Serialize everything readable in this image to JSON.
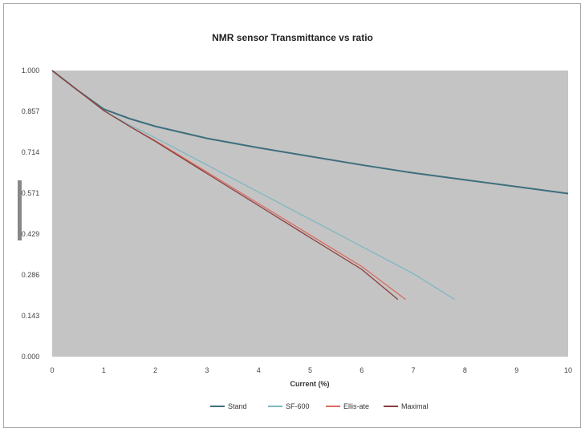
{
  "chart_data": {
    "type": "line",
    "title": "NMR sensor Transmittance vs ratio",
    "xlabel": "Current (%)",
    "ylabel": "",
    "xlim": [
      0,
      10
    ],
    "ylim": [
      0.0,
      1.0
    ],
    "x_ticks": [
      "0",
      "1",
      "2",
      "3",
      "4",
      "5",
      "6",
      "7",
      "8",
      "9",
      "10"
    ],
    "y_ticks": [
      "1.000",
      "0.857",
      "0.714",
      "0.571",
      "0.429",
      "0.286",
      "0.143",
      "0.000"
    ],
    "legend_position": "bottom",
    "grid": false,
    "plot_background": "#c4c4c4",
    "series": [
      {
        "name": "Stand",
        "color": "#3d6f7d",
        "x": [
          0,
          0.5,
          1,
          1.5,
          2,
          3,
          4,
          5,
          6,
          7,
          8,
          9,
          10
        ],
        "y": [
          1.0,
          0.93,
          0.865,
          0.832,
          0.805,
          0.763,
          0.73,
          0.7,
          0.67,
          0.642,
          0.618,
          0.594,
          0.57
        ]
      },
      {
        "name": "SF-600",
        "color": "#7fb8c0",
        "x": [
          0,
          0.5,
          1,
          1.5,
          2,
          3,
          4,
          5,
          6,
          7,
          7.8
        ],
        "y": [
          1.0,
          0.93,
          0.86,
          0.81,
          0.765,
          0.67,
          0.575,
          0.48,
          0.385,
          0.29,
          0.2
        ]
      },
      {
        "name": "Ellis-ate",
        "color": "#d96a5e",
        "x": [
          0,
          0.5,
          1,
          1.5,
          2,
          3,
          4,
          5,
          6,
          6.85
        ],
        "y": [
          1.0,
          0.93,
          0.86,
          0.805,
          0.755,
          0.645,
          0.535,
          0.425,
          0.315,
          0.2
        ]
      },
      {
        "name": "Maximal",
        "color": "#8a3d3d",
        "x": [
          0,
          0.5,
          1,
          1.5,
          2,
          3,
          4,
          5,
          6,
          6.7
        ],
        "y": [
          1.0,
          0.93,
          0.86,
          0.805,
          0.752,
          0.64,
          0.528,
          0.416,
          0.305,
          0.2
        ]
      }
    ]
  }
}
